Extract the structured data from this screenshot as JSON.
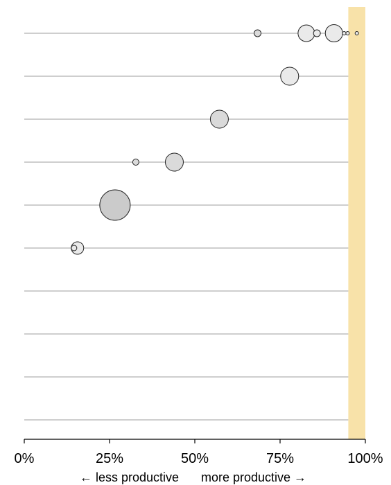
{
  "chart_data": {
    "type": "scatter",
    "title": "",
    "xlabel": "",
    "ylabel": "",
    "xlim": [
      0,
      100
    ],
    "xticks": [
      0,
      25,
      50,
      75,
      100
    ],
    "xtick_labels": [
      "0%",
      "25%",
      "50%",
      "75%",
      "100%"
    ],
    "axis_notes": {
      "left": "← less productive",
      "right": "more productive →"
    },
    "highlight_band": {
      "x_from": 95,
      "x_to": 100,
      "color": "#f8e2a9"
    },
    "rows": 10,
    "grid": true,
    "point_colors": {
      "light": "#eaeaea",
      "mid": "#dadada",
      "dark": "#cbcbcb",
      "stroke": "#222222"
    },
    "points": [
      {
        "row": 0,
        "x": 68.4,
        "size": 10,
        "shade": "mid"
      },
      {
        "row": 0,
        "x": 82.7,
        "size": 24,
        "shade": "light"
      },
      {
        "row": 0,
        "x": 85.8,
        "size": 10,
        "shade": "light"
      },
      {
        "row": 0,
        "x": 90.8,
        "size": 25,
        "shade": "light"
      },
      {
        "row": 0,
        "x": 93.8,
        "size": 5,
        "shade": "light"
      },
      {
        "row": 0,
        "x": 94.8,
        "size": 5,
        "shade": "light"
      },
      {
        "row": 0,
        "x": 97.5,
        "size": 5,
        "shade": "light"
      },
      {
        "row": 1,
        "x": 77.8,
        "size": 26,
        "shade": "light"
      },
      {
        "row": 2,
        "x": 57.2,
        "size": 26,
        "shade": "mid"
      },
      {
        "row": 3,
        "x": 32.7,
        "size": 9,
        "shade": "mid"
      },
      {
        "row": 3,
        "x": 44.0,
        "size": 26,
        "shade": "mid"
      },
      {
        "row": 4,
        "x": 26.6,
        "size": 44,
        "shade": "dark"
      },
      {
        "row": 5,
        "x": 15.6,
        "size": 18,
        "shade": "light"
      },
      {
        "row": 5,
        "x": 14.6,
        "size": 8,
        "shade": "light"
      }
    ]
  }
}
